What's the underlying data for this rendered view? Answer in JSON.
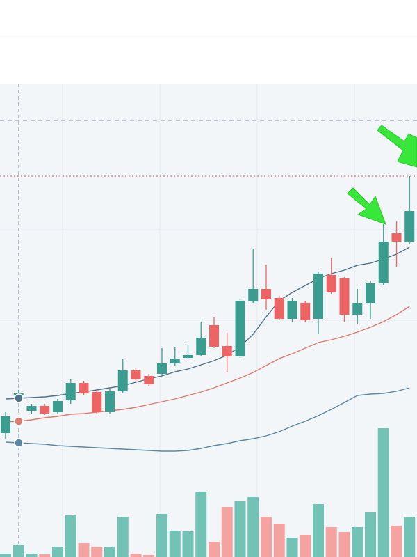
{
  "chart_data": {
    "type": "candlestick",
    "up_color": "#3a9d8f",
    "down_color": "#ec6464",
    "volume_up_color": "#72c2b6",
    "volume_down_color": "#f4a3a0",
    "open": [
      78,
      132,
      110,
      117,
      108,
      125,
      150,
      137,
      108,
      138,
      168,
      160,
      163,
      178,
      186,
      190,
      233,
      203,
      188,
      267,
      285,
      272,
      242,
      265,
      242,
      305,
      300,
      248,
      265,
      293,
      365,
      353
    ],
    "high": [
      108,
      140,
      120,
      120,
      127,
      155,
      153,
      140,
      141,
      185,
      171,
      163,
      200,
      202,
      205,
      238,
      245,
      222,
      270,
      343,
      320,
      275,
      272,
      268,
      310,
      330,
      302,
      285,
      296,
      378,
      382,
      447
    ],
    "low": [
      70,
      125,
      105,
      104,
      105,
      120,
      133,
      105,
      106,
      135,
      152,
      145,
      160,
      175,
      184,
      188,
      200,
      165,
      186,
      265,
      255,
      240,
      238,
      238,
      220,
      278,
      238,
      235,
      242,
      291,
      317,
      350
    ],
    "close": [
      102,
      135,
      117,
      106,
      124,
      150,
      135,
      108,
      138,
      168,
      155,
      148,
      178,
      185,
      190,
      215,
      202,
      188,
      268,
      285,
      270,
      242,
      268,
      240,
      307,
      280,
      248,
      265,
      293,
      353,
      353,
      397
    ],
    "volume": [
      5,
      17,
      5,
      4,
      15,
      60,
      20,
      15,
      15,
      58,
      5,
      3,
      62,
      38,
      37,
      94,
      22,
      72,
      80,
      86,
      58,
      48,
      28,
      32,
      76,
      43,
      36,
      43,
      64,
      185,
      45,
      58
    ],
    "bands": [
      {
        "color": "#4d7289",
        "values": [
          127,
          128,
          129,
          130,
          132,
          135,
          137,
          140,
          143,
          146,
          151,
          156,
          160,
          166,
          170,
          176,
          182,
          190,
          202,
          220,
          245,
          268,
          280,
          290,
          300,
          307,
          312,
          319,
          322,
          328,
          335,
          345
        ]
      },
      {
        "color": "#de7a70",
        "values": [
          94,
          95,
          97,
          100,
          102,
          105,
          106,
          108,
          110,
          112,
          115,
          119,
          123,
          127,
          132,
          137,
          143,
          150,
          157,
          165,
          175,
          185,
          192,
          200,
          208,
          212,
          217,
          223,
          230,
          238,
          248,
          260
        ]
      },
      {
        "color": "#5a88a2",
        "values": [
          65,
          64,
          63,
          62,
          60,
          59,
          58,
          57,
          56,
          55,
          54,
          53,
          52,
          52,
          53,
          56,
          60,
          63,
          67,
          70,
          74,
          80,
          88,
          95,
          103,
          112,
          122,
          132,
          134,
          135,
          138,
          143
        ]
      }
    ],
    "hlines": [
      {
        "value": 527,
        "color": "#8a93a6"
      },
      {
        "value": 447,
        "color": "#c9525a"
      }
    ],
    "ylim": [
      0,
      580
    ],
    "volume_lim": [
      0,
      200
    ]
  }
}
